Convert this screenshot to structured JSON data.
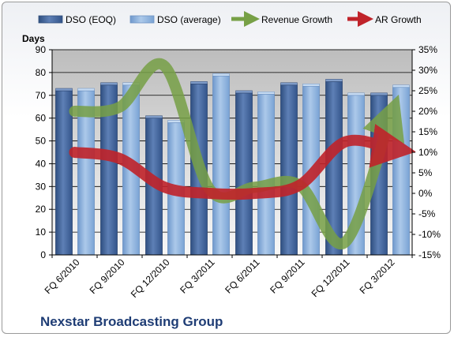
{
  "chart_data": {
    "type": "bar",
    "categories": [
      "FQ 6/2010",
      "FQ 9/2010",
      "FQ 12/2010",
      "FQ 3/2011",
      "FQ 6/2011",
      "FQ 9/2011",
      "FQ 12/2011",
      "FQ 3/2012"
    ],
    "series": [
      {
        "name": "DSO (EOQ)",
        "type": "bar",
        "axis": "left",
        "values": [
          72,
          74.5,
          60,
          75,
          71,
          74.5,
          76,
          70
        ],
        "color": "#4f6fa3"
      },
      {
        "name": "DSO (average)",
        "type": "bar",
        "axis": "left",
        "values": [
          72,
          74.5,
          58,
          78.5,
          70.5,
          74,
          70,
          73.5
        ],
        "color": "#8fb4de"
      },
      {
        "name": "Revenue Growth",
        "type": "line",
        "axis": "right",
        "values": [
          20,
          21,
          31,
          1,
          1.5,
          2,
          -12,
          18
        ],
        "color": "#77a046"
      },
      {
        "name": "AR Growth",
        "type": "line",
        "axis": "right",
        "values": [
          10,
          8.5,
          1.5,
          0,
          0,
          2,
          12.5,
          11
        ],
        "color": "#c0232a"
      }
    ],
    "ylabel": "Days",
    "ylim": [
      0,
      90
    ],
    "y_ticks": [
      "0",
      "10",
      "20",
      "30",
      "40",
      "50",
      "60",
      "70",
      "80",
      "90"
    ],
    "y2lim": [
      -15,
      35
    ],
    "y2_ticks": [
      "-15%",
      "-10%",
      "-5%",
      "0%",
      "5%",
      "10%",
      "15%",
      "20%",
      "25%",
      "30%",
      "35%"
    ],
    "grid": true,
    "legend_position": "top"
  },
  "company_name": "Nexstar Broadcasting Group"
}
